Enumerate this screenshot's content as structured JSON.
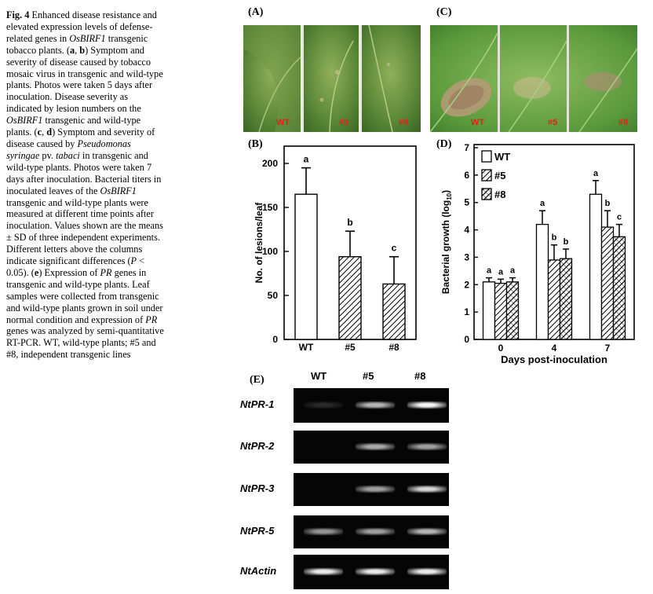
{
  "caption": {
    "fig_label": "Fig. 4",
    "segments": [
      {
        "t": "Fig. 4",
        "b": true
      },
      {
        "t": " Enhanced disease resistance and elevated expression levels of defense-related genes in "
      },
      {
        "t": "OsBIRF1",
        "i": true
      },
      {
        "t": " transgenic tobacco plants. ("
      },
      {
        "t": "a",
        "b": true
      },
      {
        "t": ", "
      },
      {
        "t": "b",
        "b": true
      },
      {
        "t": ") Symptom and severity of disease caused by tobacco mosaic virus in transgenic and wild-type plants. Photos were taken 5 days after inoculation. Disease severity as indicated by lesion numbers on the "
      },
      {
        "t": "OsBIRF1",
        "i": true
      },
      {
        "t": " transgenic and wild-type plants. ("
      },
      {
        "t": "c",
        "b": true
      },
      {
        "t": ", "
      },
      {
        "t": "d",
        "b": true
      },
      {
        "t": ") Symptom and severity of disease caused by "
      },
      {
        "t": "Pseudomonas syringae",
        "i": true
      },
      {
        "t": " pv. "
      },
      {
        "t": "tabaci",
        "i": true
      },
      {
        "t": " in transgenic and wild-type plants. Photos were taken 7 days after inoculation. Bacterial titers in inoculated leaves of the "
      },
      {
        "t": "OsBIRF1",
        "i": true
      },
      {
        "t": " transgenic and wild-type plants were measured at different time points after inoculation. Values shown are the means ± SD of three independent experiments. Different letters above the columns indicate significant differences ("
      },
      {
        "t": "P",
        "i": true
      },
      {
        "t": " < 0.05). ("
      },
      {
        "t": "e",
        "b": true
      },
      {
        "t": ") Expression of "
      },
      {
        "t": "PR",
        "i": true
      },
      {
        "t": " genes in transgenic and wild-type plants. Leaf samples were collected from transgenic and wild-type plants grown in soil under normal condition and expression of "
      },
      {
        "t": "PR",
        "i": true
      },
      {
        "t": " genes was analyzed by semi-quantitative RT-PCR. WT, wild-type plants; #5 and #8, independent transgenic lines"
      }
    ]
  },
  "panels": {
    "A": {
      "label": "(A)",
      "leaves": [
        "WT",
        "#5",
        "#8"
      ]
    },
    "C": {
      "label": "(C)",
      "leaves": [
        "WT",
        "#5",
        "#8"
      ]
    },
    "B": {
      "label": "(B)"
    },
    "D": {
      "label": "(D)"
    },
    "E": {
      "label": "(E)"
    }
  },
  "colors": {
    "leaf_label": "#e0231a",
    "leaf_A": "#5e8a3a",
    "leaf_C": "#5a9a3c",
    "gel_bg": "#050505"
  },
  "chart_data": [
    {
      "panel": "B",
      "type": "bar",
      "categories": [
        "WT",
        "#5",
        "#8"
      ],
      "values": [
        165,
        94,
        63
      ],
      "errors": [
        30,
        29,
        31
      ],
      "sig_letters": [
        "a",
        "b",
        "c"
      ],
      "fills": [
        "open",
        "hatched",
        "hatched"
      ],
      "ylabel": "No. of lesions/leaf",
      "xlabel": "",
      "ylim": [
        0,
        200
      ],
      "yticks": [
        0,
        50,
        100,
        150,
        200
      ]
    },
    {
      "panel": "D",
      "type": "bar",
      "categories": [
        "0",
        "4",
        "7"
      ],
      "series": [
        {
          "name": "WT",
          "fill": "open",
          "values": [
            2.1,
            4.2,
            5.3
          ],
          "errors": [
            0.15,
            0.5,
            0.5
          ],
          "letters": [
            "a",
            "a",
            "a"
          ]
        },
        {
          "name": "#5",
          "fill": "hatched",
          "values": [
            2.05,
            2.9,
            4.1
          ],
          "errors": [
            0.15,
            0.55,
            0.6
          ],
          "letters": [
            "a",
            "b",
            "b"
          ]
        },
        {
          "name": "#8",
          "fill": "crosshatched",
          "values": [
            2.1,
            2.95,
            3.75
          ],
          "errors": [
            0.15,
            0.35,
            0.45
          ],
          "letters": [
            "a",
            "b",
            "c"
          ]
        }
      ],
      "ylabel": "Bacterial growth (log10)",
      "ylabel_main": "Bacterial growth (log",
      "ylabel_sub": "10",
      "ylabel_end": ")",
      "xlabel": "Days post-inoculation",
      "ylim": [
        0,
        7
      ],
      "yticks": [
        0,
        1,
        2,
        3,
        4,
        5,
        6,
        7
      ],
      "legend": "top-left"
    }
  ],
  "gel": {
    "columns": [
      "WT",
      "#5",
      "#8"
    ],
    "rows": [
      {
        "name": "NtPR-1",
        "bands": [
          0.05,
          0.7,
          1.0
        ]
      },
      {
        "name": "NtPR-2",
        "bands": [
          0.0,
          0.65,
          0.6
        ]
      },
      {
        "name": "NtPR-3",
        "bands": [
          0.0,
          0.6,
          0.85
        ]
      },
      {
        "name": "NtPR-5",
        "bands": [
          0.55,
          0.6,
          0.7
        ]
      },
      {
        "name": "NtActin",
        "bands": [
          0.95,
          0.95,
          0.95
        ]
      }
    ]
  }
}
